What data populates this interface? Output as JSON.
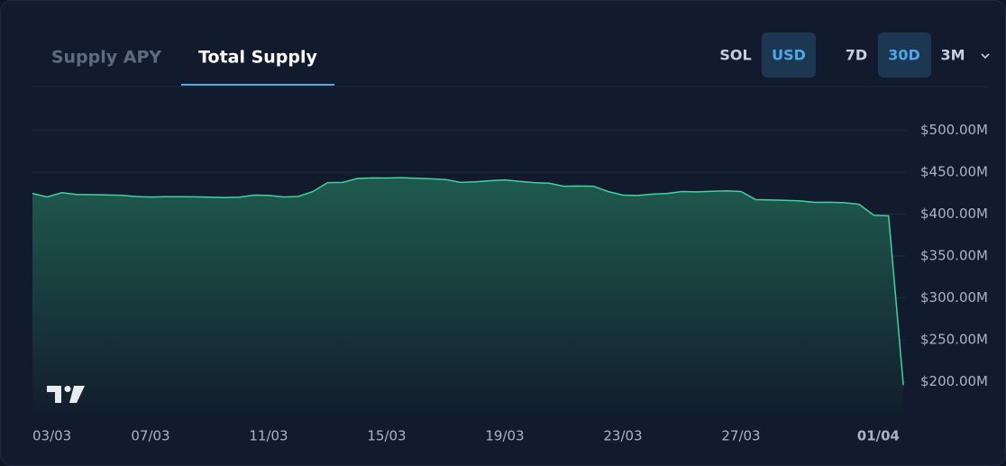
{
  "tabs": {
    "items": [
      "Supply APY",
      "Total Supply"
    ],
    "selected": 1
  },
  "currency": {
    "items": [
      "SOL",
      "USD"
    ],
    "selected": 1
  },
  "ranges": {
    "items": [
      "7D",
      "30D",
      "3M"
    ],
    "selected": 1
  },
  "chart_data": {
    "type": "area",
    "categories": [
      "03/03",
      null,
      null,
      null,
      null,
      null,
      null,
      null,
      "07/03",
      null,
      null,
      null,
      null,
      null,
      null,
      null,
      "11/03",
      null,
      null,
      null,
      null,
      null,
      null,
      null,
      "15/03",
      null,
      null,
      null,
      null,
      null,
      null,
      null,
      "19/03",
      null,
      null,
      null,
      null,
      null,
      null,
      null,
      "23/03",
      null,
      null,
      null,
      null,
      null,
      null,
      null,
      "27/03",
      null,
      null,
      null,
      null,
      null,
      null,
      null,
      null,
      null,
      "01/04",
      null
    ],
    "values": [
      424.7,
      420.5,
      425.5,
      423.5,
      423.2,
      422.8,
      422.5,
      421,
      420.4,
      420.8,
      420.8,
      420.6,
      420.2,
      419.8,
      420.3,
      422.6,
      422.4,
      420.5,
      421,
      426.9,
      437.6,
      437.8,
      442.5,
      443.1,
      443,
      443.5,
      442.8,
      442.1,
      441.2,
      437.8,
      438.5,
      439.8,
      440.8,
      439,
      437.6,
      436.8,
      433.3,
      433.5,
      433.3,
      426.9,
      422.6,
      422.2,
      423.8,
      424.7,
      426.9,
      426.5,
      427.2,
      427.8,
      426.9,
      417.2,
      416.8,
      416.4,
      415.7,
      414,
      414.1,
      413.6,
      411.8,
      398.5,
      397.9,
      196
    ],
    "color": "#3fd3a0",
    "ylim": [
      163,
      550
    ],
    "yticks": [
      {
        "value": 200,
        "label": "$200.00M"
      },
      {
        "value": 250,
        "label": "$250.00M"
      },
      {
        "value": 300,
        "label": "$300.00M"
      },
      {
        "value": 350,
        "label": "$350.00M"
      },
      {
        "value": 400,
        "label": "$400.00M"
      },
      {
        "value": 450,
        "label": "$450.00M"
      },
      {
        "value": 500,
        "label": "$500.00M"
      }
    ],
    "grid": true
  }
}
